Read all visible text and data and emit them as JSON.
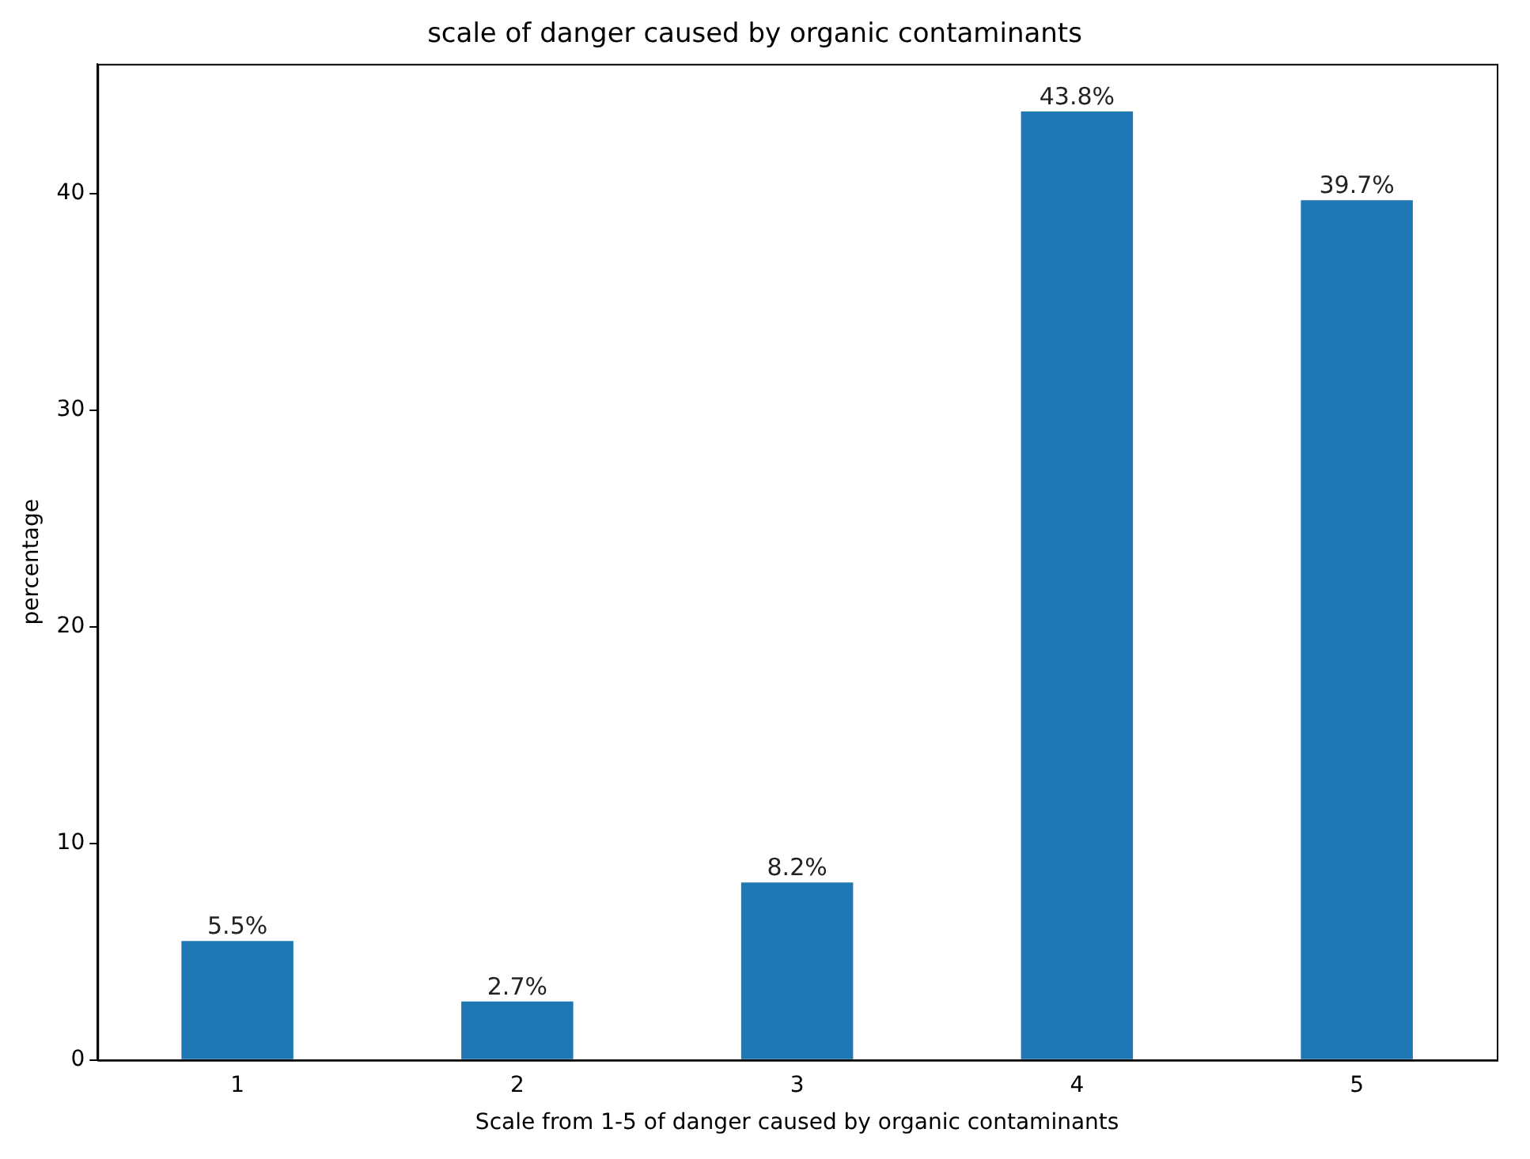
{
  "chart_data": {
    "type": "bar",
    "title": "scale of danger caused by organic contaminants",
    "xlabel": "Scale from 1-5 of danger caused by organic contaminants",
    "ylabel": "percentage",
    "categories": [
      "1",
      "2",
      "3",
      "4",
      "5"
    ],
    "values": [
      5.5,
      2.7,
      8.2,
      43.8,
      39.7
    ],
    "value_labels": [
      "5.5%",
      "2.7%",
      "8.2%",
      "43.8%",
      "39.7%"
    ],
    "color": "#1f77b4",
    "ylim": [
      0,
      46
    ],
    "yticks": [
      0,
      10,
      20,
      30,
      40
    ],
    "grid": false,
    "legend": false
  }
}
